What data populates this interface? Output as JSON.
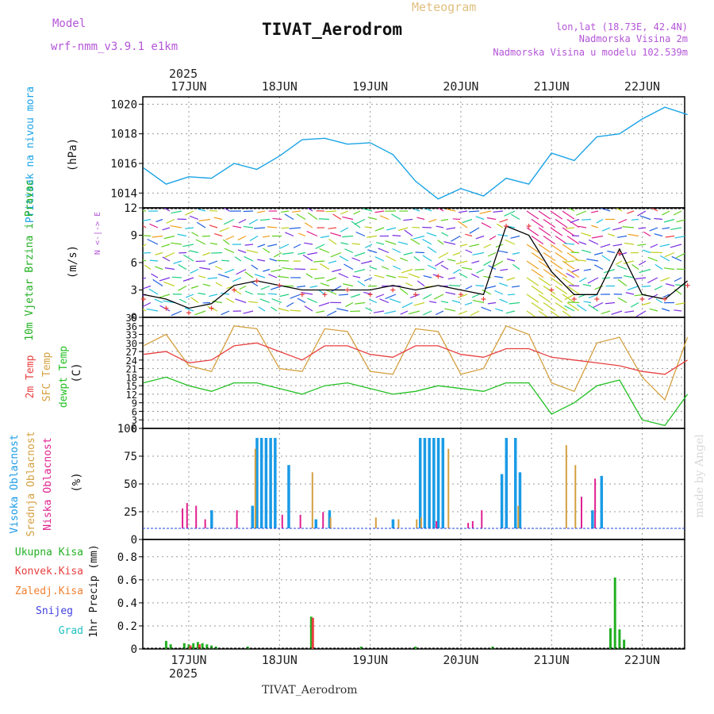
{
  "header": {
    "meteogram_label": "Meteogram",
    "station_title": "TIVAT_Aerodrom",
    "model_label": "Model",
    "model_name": "wrf-nmm_v3.9.1 e1km",
    "lonlat": "lon,lat (18.73E, 42.4N)",
    "elevation": "Nadmorska Visina 2m",
    "model_elevation": "Nadmorska Visina u modelu 102.539m"
  },
  "footer": {
    "station": "TIVAT_Aerodrom",
    "watermark": "made by Angel"
  },
  "time_axis": {
    "year": "2025",
    "days": [
      "17JUN",
      "18JUN",
      "19JUN",
      "20JUN",
      "21JUN",
      "22JUN"
    ]
  },
  "colors": {
    "pressure": "#1aa3e6",
    "wind_text": "#22b022",
    "wind_label_dark": "#000000",
    "temp_2m": "#e84040",
    "temp_sfc": "#d4a040",
    "dewpt": "#22c022",
    "cloud_high": "#1a9be6",
    "cloud_mid": "#d4a040",
    "cloud_low": "#e0208f",
    "rain_total": "#22b022",
    "rain_conv": "#e84040",
    "rain_frozen": "#f08030",
    "snow": "#4040e0",
    "graupel": "#20c0c0",
    "grid": "#999999"
  },
  "chart_data": [
    {
      "type": "line",
      "name_label": "Pritisak na nivou mora",
      "ylabel": "(hPa)",
      "yticks": [
        "1020",
        "1018",
        "1016",
        "1014"
      ],
      "ylim": [
        1013.0,
        1020.5
      ],
      "x_days": [
        0.0,
        0.25,
        0.5,
        0.75,
        1.0,
        1.25,
        1.5,
        1.75,
        2.0,
        2.25,
        2.5,
        2.75,
        3.0,
        3.25,
        3.5,
        3.75,
        4.0,
        4.25,
        4.5,
        4.75,
        5.0,
        5.25,
        5.5,
        5.75,
        6.0
      ],
      "values": [
        1015.7,
        1014.6,
        1015.1,
        1015.0,
        1016.0,
        1015.6,
        1016.5,
        1017.6,
        1017.7,
        1017.3,
        1017.4,
        1016.6,
        1014.8,
        1013.6,
        1014.3,
        1013.8,
        1015.0,
        1014.6,
        1016.7,
        1016.2,
        1017.8,
        1018.0,
        1019.0,
        1019.8,
        1019.3
      ]
    },
    {
      "type": "line",
      "name_label": "10m Vjetar Brzina i Pravac",
      "ylabel": "(m/s)",
      "compass": "N <-|-> E",
      "yticks": [
        "12",
        "9",
        "6",
        "3",
        "0"
      ],
      "ylim": [
        0,
        12
      ],
      "x_days": [
        0.0,
        0.25,
        0.5,
        0.75,
        1.0,
        1.25,
        1.5,
        1.75,
        2.0,
        2.25,
        2.5,
        2.75,
        3.0,
        3.25,
        3.5,
        3.75,
        4.0,
        4.25,
        4.5,
        4.75,
        5.0,
        5.25,
        5.5,
        5.75,
        6.0
      ],
      "series": [
        {
          "name": "",
          "values": [
            2.5,
            2.0,
            1.0,
            1.5,
            3.5,
            4.0,
            3.5,
            3.0,
            3.0,
            3.0,
            3.0,
            3.5,
            3.0,
            3.5,
            3.0,
            2.5,
            10.0,
            9.0,
            5.0,
            2.5,
            2.5,
            7.5,
            2.5,
            2.0,
            4.0
          ]
        },
        {
          "name": "",
          "values": [
            2.0,
            1.0,
            0.5,
            1.0,
            3.0,
            4.0,
            3.5,
            2.5,
            2.5,
            3.0,
            2.5,
            3.0,
            2.5,
            4.5,
            2.5,
            2.0,
            10.0,
            10.0,
            3.0,
            2.0,
            2.0,
            7.0,
            2.0,
            2.0,
            3.5
          ]
        }
      ]
    },
    {
      "type": "line",
      "name_labels": [
        "2m Temp",
        "SFC Temp",
        "dewpt Temp"
      ],
      "ylabel": "(C)",
      "yticks": [
        "39",
        "36",
        "33",
        "30",
        "27",
        "24",
        "21",
        "18",
        "15",
        "12",
        "9",
        "6",
        "3",
        "0"
      ],
      "ylim": [
        0,
        39
      ],
      "x_days": [
        0.0,
        0.25,
        0.5,
        0.75,
        1.0,
        1.25,
        1.5,
        1.75,
        2.0,
        2.25,
        2.5,
        2.75,
        3.0,
        3.25,
        3.5,
        3.75,
        4.0,
        4.25,
        4.5,
        4.75,
        5.0,
        5.25,
        5.5,
        5.75,
        6.0
      ],
      "series": [
        {
          "name": "2m Temp",
          "values": [
            26,
            27,
            23,
            24,
            29,
            30,
            27,
            24,
            29,
            29,
            26,
            25,
            29,
            29,
            26,
            25,
            28,
            28,
            25,
            24,
            23,
            22,
            20,
            19,
            24
          ]
        },
        {
          "name": "SFC Temp",
          "values": [
            29,
            33,
            22,
            20,
            36,
            35,
            21,
            20,
            35,
            34,
            20,
            19,
            35,
            34,
            19,
            21,
            36,
            33,
            16,
            13,
            30,
            32,
            18,
            10,
            32
          ]
        },
        {
          "name": "dewpt Temp",
          "values": [
            16,
            18,
            15,
            13,
            16,
            16,
            14,
            12,
            15,
            16,
            14,
            12,
            13,
            15,
            14,
            13,
            16,
            16,
            5,
            9,
            15,
            17,
            3,
            1,
            12
          ]
        }
      ]
    },
    {
      "type": "bar",
      "name_labels": [
        "Visoka Oblacnost",
        "Srednja Oblacnost",
        "Niska Oblacnost"
      ],
      "ylabel": "(%)",
      "yticks": [
        "100",
        "75",
        "50",
        "25",
        "0"
      ],
      "ylim": [
        0,
        100
      ],
      "series": [
        {
          "name": "Visoka Oblacnost",
          "bars": [
            [
              0.25,
              20
            ],
            [
              0.7,
              25
            ],
            [
              0.75,
              100
            ],
            [
              0.8,
              100
            ],
            [
              0.85,
              100
            ],
            [
              0.9,
              100
            ],
            [
              0.95,
              100
            ],
            [
              1.1,
              70
            ],
            [
              1.4,
              10
            ],
            [
              1.55,
              20
            ],
            [
              2.25,
              10
            ],
            [
              2.55,
              100
            ],
            [
              2.6,
              100
            ],
            [
              2.65,
              100
            ],
            [
              2.7,
              100
            ],
            [
              2.75,
              100
            ],
            [
              2.8,
              100
            ],
            [
              3.45,
              60
            ],
            [
              3.5,
              100
            ],
            [
              3.6,
              100
            ],
            [
              3.65,
              62
            ],
            [
              4.45,
              20
            ],
            [
              4.55,
              58
            ]
          ]
        },
        {
          "name": "Srednja Oblacnost",
          "bars": [
            [
              0.72,
              88
            ],
            [
              1.35,
              62
            ],
            [
              1.55,
              12
            ],
            [
              2.05,
              12
            ],
            [
              2.3,
              10
            ],
            [
              2.5,
              10
            ],
            [
              2.55,
              12
            ],
            [
              2.85,
              88
            ],
            [
              3.62,
              25
            ],
            [
              4.15,
              92
            ],
            [
              4.25,
              70
            ]
          ]
        },
        {
          "name": "Niska Oblacnost",
          "bars": [
            [
              -0.1,
              22
            ],
            [
              -0.05,
              28
            ],
            [
              0.05,
              25
            ],
            [
              0.15,
              10
            ],
            [
              0.5,
              20
            ],
            [
              1.0,
              15
            ],
            [
              1.2,
              15
            ],
            [
              1.45,
              18
            ],
            [
              2.7,
              8
            ],
            [
              3.05,
              6
            ],
            [
              3.1,
              8
            ],
            [
              3.2,
              20
            ],
            [
              4.3,
              35
            ],
            [
              4.45,
              55
            ]
          ]
        }
      ]
    },
    {
      "type": "bar",
      "name_labels": [
        "Ukupna Kisa",
        "Konvek.Kisa",
        "Zaledj.Kisa",
        "Snijeg",
        "Grad"
      ],
      "ylabel": "1hr Precip (mm)",
      "yticks": [
        "0.8",
        "0.6",
        "0.4",
        "0.2",
        "0"
      ],
      "ylim": [
        0,
        0.95
      ],
      "series": [
        {
          "name": "Ukupna Kisa",
          "bars": [
            [
              -0.25,
              0.07
            ],
            [
              -0.2,
              0.04
            ],
            [
              -0.05,
              0.05
            ],
            [
              0.0,
              0.04
            ],
            [
              0.05,
              0.05
            ],
            [
              0.1,
              0.06
            ],
            [
              0.15,
              0.05
            ],
            [
              0.2,
              0.04
            ],
            [
              0.25,
              0.03
            ],
            [
              0.3,
              0.02
            ],
            [
              0.65,
              0.02
            ],
            [
              1.35,
              0.28
            ],
            [
              1.9,
              0.02
            ],
            [
              2.5,
              0.02
            ],
            [
              3.35,
              0.02
            ],
            [
              4.65,
              0.18
            ],
            [
              4.7,
              0.62
            ],
            [
              4.75,
              0.17
            ],
            [
              4.8,
              0.08
            ]
          ]
        },
        {
          "name": "Konvek.Kisa",
          "bars": [
            [
              0.0,
              0.03
            ],
            [
              0.1,
              0.04
            ],
            [
              1.35,
              0.27
            ]
          ]
        }
      ]
    }
  ]
}
